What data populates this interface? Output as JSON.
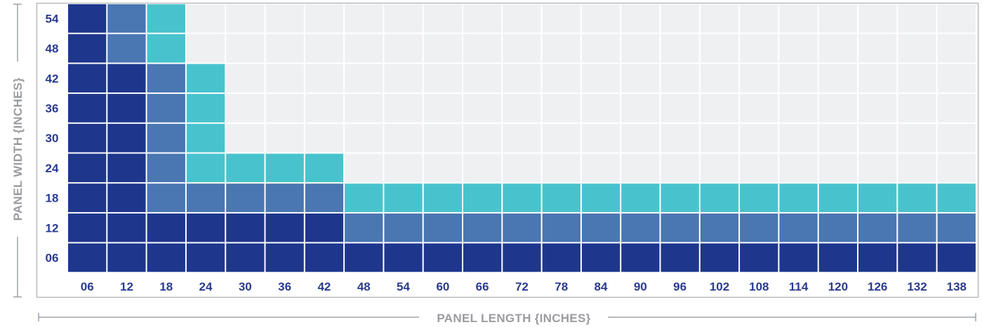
{
  "chart_data": {
    "type": "heatmap",
    "xlabel": "PANEL LENGTH {INCHES}",
    "ylabel": "PANEL WIDTH {INCHES}",
    "x_categories": [
      "06",
      "12",
      "18",
      "24",
      "30",
      "36",
      "42",
      "48",
      "54",
      "60",
      "66",
      "72",
      "78",
      "84",
      "90",
      "96",
      "102",
      "108",
      "114",
      "120",
      "126",
      "132",
      "138"
    ],
    "y_categories": [
      "54",
      "48",
      "42",
      "36",
      "30",
      "24",
      "18",
      "12",
      "06"
    ],
    "cell_levels": [
      [
        3,
        2,
        1,
        0,
        0,
        0,
        0,
        0,
        0,
        0,
        0,
        0,
        0,
        0,
        0,
        0,
        0,
        0,
        0,
        0,
        0,
        0,
        0
      ],
      [
        3,
        2,
        1,
        0,
        0,
        0,
        0,
        0,
        0,
        0,
        0,
        0,
        0,
        0,
        0,
        0,
        0,
        0,
        0,
        0,
        0,
        0,
        0
      ],
      [
        3,
        3,
        2,
        1,
        0,
        0,
        0,
        0,
        0,
        0,
        0,
        0,
        0,
        0,
        0,
        0,
        0,
        0,
        0,
        0,
        0,
        0,
        0
      ],
      [
        3,
        3,
        2,
        1,
        0,
        0,
        0,
        0,
        0,
        0,
        0,
        0,
        0,
        0,
        0,
        0,
        0,
        0,
        0,
        0,
        0,
        0,
        0
      ],
      [
        3,
        3,
        2,
        1,
        0,
        0,
        0,
        0,
        0,
        0,
        0,
        0,
        0,
        0,
        0,
        0,
        0,
        0,
        0,
        0,
        0,
        0,
        0
      ],
      [
        3,
        3,
        2,
        1,
        1,
        1,
        1,
        0,
        0,
        0,
        0,
        0,
        0,
        0,
        0,
        0,
        0,
        0,
        0,
        0,
        0,
        0,
        0
      ],
      [
        3,
        3,
        2,
        2,
        2,
        2,
        2,
        1,
        1,
        1,
        1,
        1,
        1,
        1,
        1,
        1,
        1,
        1,
        1,
        1,
        1,
        1,
        1
      ],
      [
        3,
        3,
        3,
        3,
        3,
        3,
        3,
        2,
        2,
        2,
        2,
        2,
        2,
        2,
        2,
        2,
        2,
        2,
        2,
        2,
        2,
        2,
        2
      ],
      [
        3,
        3,
        3,
        3,
        3,
        3,
        3,
        3,
        3,
        3,
        3,
        3,
        3,
        3,
        3,
        3,
        3,
        3,
        3,
        3,
        3,
        3,
        3
      ]
    ],
    "level_colors": [
      "#eff0f2",
      "#48c3cd",
      "#4a76b2",
      "#1e378d"
    ],
    "grid": true
  }
}
